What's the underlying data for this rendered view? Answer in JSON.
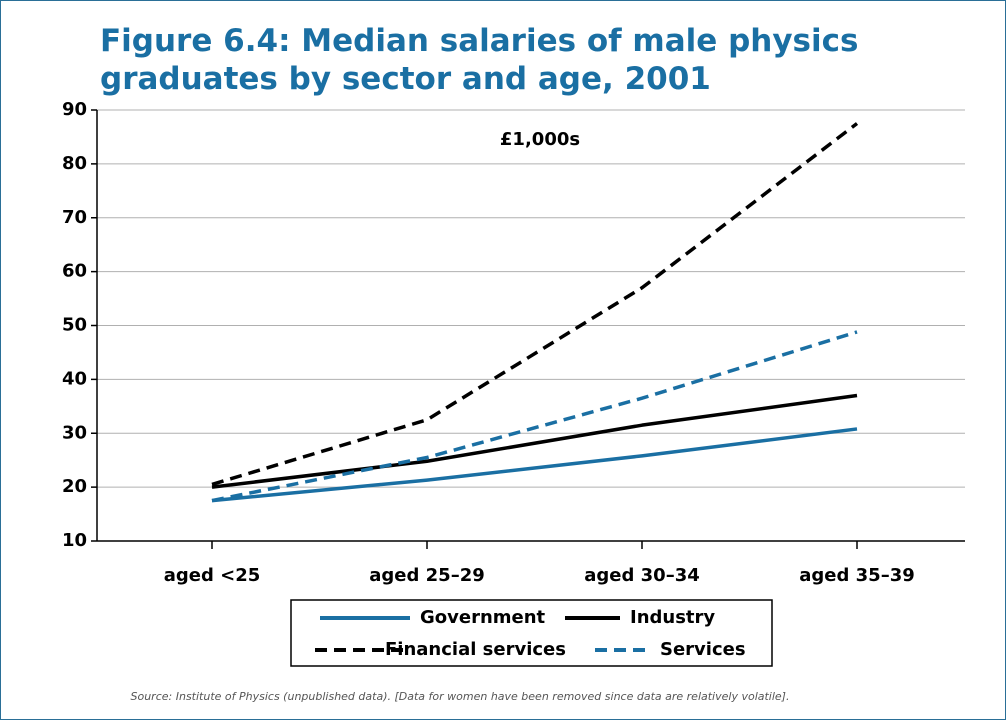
{
  "chart_data": {
    "type": "line",
    "title": "Figure 6.4: Median salaries of male physics graduates by sector and age, 2001",
    "subtitle": "£1,000s",
    "note": "Source: Institute of Physics (unpublished data). [Data for women have been removed since data are relatively volatile].",
    "categories": [
      "aged <25",
      "aged 25–29",
      "aged 30–34",
      "aged 35–39"
    ],
    "series": [
      {
        "name": "Government",
        "color": "#1a6fa3",
        "linestyle": "solid",
        "values": [
          17.5,
          21.3,
          25.8,
          30.8
        ]
      },
      {
        "name": "Industry",
        "color": "#000000",
        "linestyle": "solid",
        "values": [
          20,
          24.8,
          31.5,
          37
        ]
      },
      {
        "name": "Financial services",
        "color": "#000000",
        "linestyle": "dashed",
        "values": [
          20.5,
          32.5,
          57,
          87.5
        ]
      },
      {
        "name": "Services",
        "color": "#1a6fa3",
        "linestyle": "dashed",
        "values": [
          17.5,
          25.5,
          36.5,
          48.8
        ]
      }
    ],
    "ylim": [
      10,
      90
    ],
    "yticks": [
      10,
      20,
      30,
      40,
      50,
      60,
      70,
      80,
      90
    ],
    "grid": true
  }
}
